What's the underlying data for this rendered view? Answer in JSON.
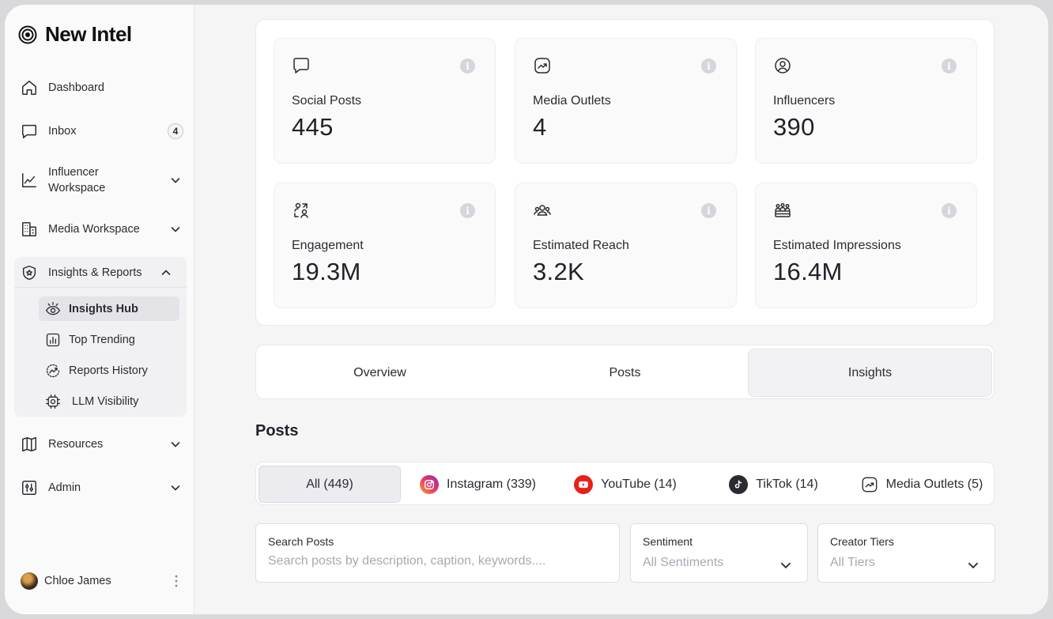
{
  "brand": {
    "name": "New Intel"
  },
  "sidebar": {
    "items": [
      {
        "label": "Dashboard",
        "icon": "home-icon"
      },
      {
        "label": "Inbox",
        "icon": "chat-bubble-icon",
        "badge": "4"
      },
      {
        "label": "Influencer\nWorkspace",
        "icon": "line-chart-icon"
      },
      {
        "label": "Media Workspace",
        "icon": "building-icon"
      },
      {
        "label": "Insights & Reports",
        "icon": "shield-icon"
      },
      {
        "label": "Resources",
        "icon": "book-icon"
      },
      {
        "label": "Admin",
        "icon": "sliders-icon"
      }
    ],
    "sub_items": [
      {
        "label": "Insights Hub",
        "icon": "eye-icon",
        "active": true
      },
      {
        "label": "Top Trending",
        "icon": "bar-chart-icon"
      },
      {
        "label": "Reports History",
        "icon": "history-trend-icon"
      },
      {
        "label": "LLM Visibility",
        "icon": "chip-icon"
      }
    ],
    "user": {
      "name": "Chloe James"
    }
  },
  "stats": [
    {
      "label": "Social Posts",
      "value": "445",
      "icon": "chat-bubble-icon"
    },
    {
      "label": "Media Outlets",
      "value": "4",
      "icon": "trend-square-icon"
    },
    {
      "label": "Influencers",
      "value": "390",
      "icon": "user-circle-icon"
    },
    {
      "label": "Engagement",
      "value": "19.3M",
      "icon": "engagement-icon"
    },
    {
      "label": "Estimated Reach",
      "value": "3.2K",
      "icon": "users-icon"
    },
    {
      "label": "Estimated Impressions",
      "value": "16.4M",
      "icon": "crowd-icon"
    }
  ],
  "tabs": [
    {
      "label": "Overview"
    },
    {
      "label": "Posts"
    },
    {
      "label": "Insights",
      "active": true
    }
  ],
  "posts": {
    "title": "Posts",
    "platforms": [
      {
        "label": "All (449)",
        "active": true
      },
      {
        "label": "Instagram (339)",
        "icon": "instagram-icon"
      },
      {
        "label": "YouTube (14)",
        "icon": "youtube-icon"
      },
      {
        "label": "TikTok (14)",
        "icon": "tiktok-icon"
      },
      {
        "label": "Media Outlets (5)",
        "icon": "trend-square-icon"
      }
    ],
    "filters": {
      "search_label": "Search Posts",
      "search_placeholder": "Search posts by description, caption, keywords....",
      "sentiment_label": "Sentiment",
      "sentiment_value": "All Sentiments",
      "tiers_label": "Creator Tiers",
      "tiers_value": "All Tiers"
    }
  },
  "colors": {
    "youtube": "#e62117",
    "tiktok": "#2a2a33",
    "instagram_start": "#f9a23b",
    "instagram_end": "#c13584"
  }
}
